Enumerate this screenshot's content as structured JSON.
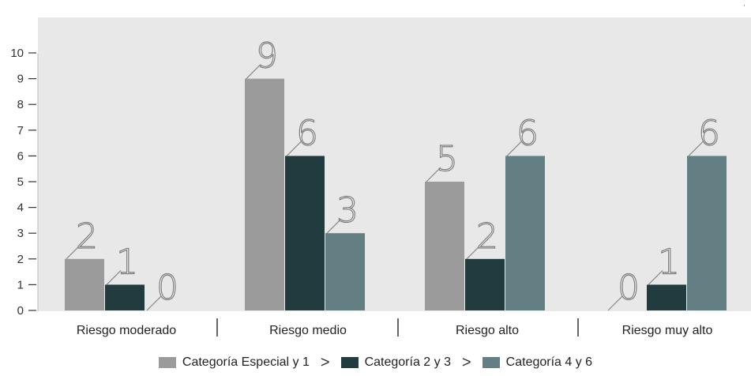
{
  "chart_data": {
    "type": "bar",
    "categories": [
      "Riesgo moderado",
      "Riesgo medio",
      "Riesgo alto",
      "Riesgo muy alto"
    ],
    "series": [
      {
        "name": "Categoría Especial y 1",
        "values": [
          2,
          9,
          5,
          0
        ],
        "color": "#9b9b9b"
      },
      {
        "name": "Categoría 2 y 3",
        "values": [
          1,
          6,
          2,
          1
        ],
        "color": "#223b3f"
      },
      {
        "name": "Categoría 4 y 6",
        "values": [
          0,
          3,
          6,
          6
        ],
        "color": "#647f83"
      }
    ],
    "yticks": [
      0,
      1,
      2,
      3,
      4,
      5,
      6,
      7,
      8,
      9,
      10
    ],
    "ylim": [
      0,
      10
    ],
    "plot_background": "#e8e8e8",
    "legend_position": "bottom",
    "legend_separator": ">"
  }
}
